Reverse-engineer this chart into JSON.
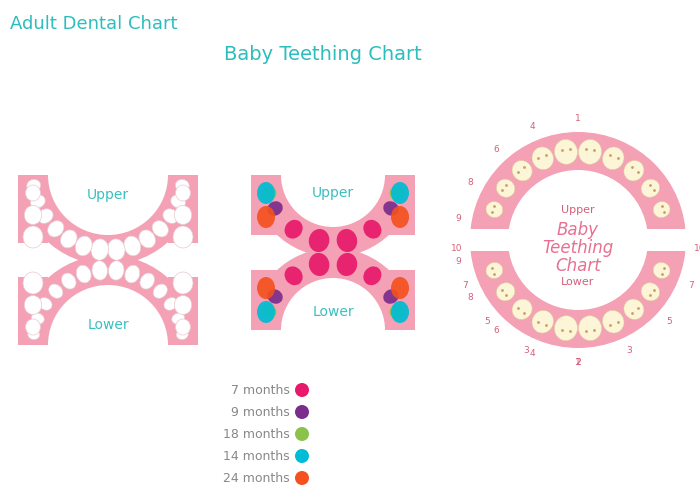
{
  "bg_color": "#ffffff",
  "pink_gum": "#f4a0b5",
  "white_tooth": "#ffffff",
  "cream_tooth": "#fdf5d8",
  "teal_title": "#2dbdbd",
  "teal_label": "#3bbfbf",
  "pink_label": "#e87090",
  "pink_text": "#d4607a",
  "gray_text": "#888888",
  "title1": "Adult Dental Chart",
  "title2": "Baby Teething Chart",
  "legend_items": [
    {
      "label": "7 months",
      "color": "#e8196a"
    },
    {
      "label": "9 months",
      "color": "#7b2d8b"
    },
    {
      "label": "18 months",
      "color": "#8bc34a"
    },
    {
      "label": "14 months",
      "color": "#00bcd4"
    },
    {
      "label": "24 months",
      "color": "#f4511e"
    }
  ],
  "baby_upper_colors": [
    "#f4511e",
    "#00bcd4",
    "#8bc34a",
    "#e8196a",
    "#e8196a",
    "#e8196a",
    "#8bc34a",
    "#00bcd4",
    "#f4511e",
    "#f4511e"
  ],
  "baby_lower_colors": [
    "#f4511e",
    "#00bcd4",
    "#8bc34a",
    "#7b2d8b",
    "#e8196a",
    "#e8196a",
    "#7b2d8b",
    "#8bc34a",
    "#00bcd4",
    "#f4511e"
  ],
  "circ_upper_nums": [
    [
      90,
      "2"
    ],
    [
      65,
      "3"
    ],
    [
      42,
      "5"
    ],
    [
      22,
      "7"
    ],
    [
      4,
      "10"
    ]
  ],
  "circ_lower_nums": [
    [
      270,
      "1"
    ],
    [
      248,
      "4"
    ],
    [
      228,
      "6"
    ],
    [
      208,
      "8"
    ],
    [
      190,
      "9"
    ]
  ]
}
